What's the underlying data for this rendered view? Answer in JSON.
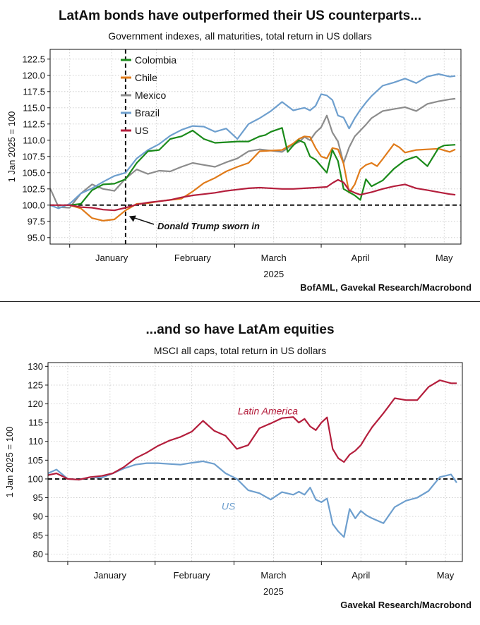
{
  "charts": [
    {
      "title": "LatAm bonds have outperformed their US counterparts...",
      "subtitle": "Government indexes, all maturities, total return in US dollars",
      "source": "BofAML, Gavekal Research/Macrobond",
      "year_label": "2025",
      "annotation": "Donald Trump sworn in"
    },
    {
      "title": "...and so have LatAm equities",
      "subtitle": "MSCI all caps, total return in US dollars",
      "source": "Gavekal Research/Macrobond",
      "year_label": "2025"
    }
  ],
  "chart_data": [
    {
      "type": "line",
      "title": "LatAm bonds have outperformed their US counterparts...",
      "ylabel": "1 Jan 2025 = 100",
      "ylim": [
        94,
        124
      ],
      "yticks": [
        95.0,
        97.5,
        100.0,
        102.5,
        105.0,
        107.5,
        110.0,
        112.5,
        115.0,
        117.5,
        120.0,
        122.5
      ],
      "xlim": [
        -7,
        140
      ],
      "x_unit": "days since 1 Jan 2025",
      "xticks": [
        {
          "label": "January",
          "day": 15
        },
        {
          "label": "February",
          "day": 44
        },
        {
          "label": "March",
          "day": 73
        },
        {
          "label": "April",
          "day": 104
        },
        {
          "label": "May",
          "day": 134
        }
      ],
      "reference_line_y": 100,
      "event_line_day": 20,
      "legend_position": "top-left",
      "series": [
        {
          "name": "Colombia",
          "color": "#1a8a1a",
          "x": [
            0,
            4,
            8,
            12,
            16,
            20,
            24,
            28,
            32,
            36,
            40,
            44,
            48,
            52,
            56,
            60,
            64,
            68,
            70,
            72,
            74,
            76,
            78,
            80,
            82,
            84,
            86,
            88,
            90,
            92,
            94,
            96,
            98,
            100,
            102,
            104,
            106,
            108,
            112,
            116,
            120,
            124,
            128,
            132,
            134,
            138
          ],
          "values": [
            100,
            100.2,
            102.3,
            103.2,
            103.3,
            104,
            106.5,
            108.3,
            108.5,
            110.2,
            110.6,
            111.5,
            110.2,
            109.6,
            109.7,
            109.8,
            109.8,
            110.6,
            110.8,
            111.3,
            111.6,
            111.9,
            108.2,
            109.2,
            110,
            109.6,
            107.5,
            107,
            106,
            105,
            108.5,
            106.8,
            102.5,
            102,
            101.5,
            100.8,
            104,
            102.9,
            103.8,
            105.6,
            106.9,
            107.5,
            106,
            108.8,
            109.2,
            109.3
          ]
        },
        {
          "name": "Chile",
          "color": "#e07b1a",
          "x": [
            0,
            4,
            8,
            12,
            16,
            20,
            24,
            28,
            32,
            36,
            40,
            44,
            48,
            52,
            56,
            60,
            64,
            68,
            72,
            76,
            80,
            82,
            84,
            86,
            88,
            90,
            92,
            94,
            96,
            98,
            100,
            102,
            104,
            106,
            108,
            110,
            112,
            116,
            118,
            120,
            124,
            128,
            132,
            136,
            138
          ],
          "values": [
            100,
            99.5,
            98,
            97.6,
            97.8,
            99.2,
            100.2,
            100.3,
            100.6,
            100.8,
            101,
            102.1,
            103.4,
            104.2,
            105.2,
            105.9,
            106.5,
            108.3,
            108.4,
            108.5,
            109.5,
            110.2,
            110.6,
            110.5,
            108.8,
            107.5,
            107.2,
            108.8,
            108.6,
            106.4,
            101.9,
            103.2,
            105.5,
            106.2,
            106.5,
            106,
            107.1,
            109.4,
            108.9,
            108.1,
            108.5,
            108.6,
            108.7,
            108.2,
            108.6
          ]
        },
        {
          "name": "Mexico",
          "color": "#8c8c8c",
          "x": [
            -7,
            -4,
            0,
            4,
            8,
            12,
            16,
            20,
            24,
            28,
            32,
            36,
            40,
            44,
            48,
            52,
            56,
            60,
            64,
            68,
            72,
            76,
            80,
            82,
            84,
            86,
            88,
            90,
            92,
            94,
            96,
            98,
            100,
            102,
            104,
            106,
            108,
            112,
            116,
            120,
            124,
            128,
            132,
            136,
            138
          ],
          "values": [
            102.6,
            99.7,
            99.6,
            101.8,
            103.2,
            102.5,
            102.2,
            104.1,
            105.5,
            104.8,
            105.3,
            105.2,
            105.9,
            106.5,
            106.2,
            105.9,
            106.6,
            107.2,
            108.3,
            108.6,
            108.4,
            108.2,
            109.4,
            109.7,
            110.5,
            110,
            111.2,
            112,
            113.8,
            111.2,
            109.8,
            106.5,
            108.9,
            110.6,
            111.5,
            112.4,
            113.4,
            114.5,
            114.8,
            115.1,
            114.5,
            115.6,
            116,
            116.3,
            116.4
          ]
        },
        {
          "name": "Brazil",
          "color": "#6e9fce",
          "x": [
            -7,
            -4,
            0,
            4,
            8,
            12,
            16,
            20,
            24,
            28,
            32,
            36,
            40,
            44,
            48,
            52,
            56,
            60,
            64,
            68,
            72,
            76,
            80,
            82,
            84,
            86,
            88,
            90,
            92,
            94,
            96,
            98,
            100,
            102,
            104,
            106,
            108,
            112,
            116,
            120,
            124,
            128,
            132,
            136,
            138
          ],
          "values": [
            100,
            99.5,
            100.2,
            101.8,
            102.6,
            103.6,
            104.5,
            105,
            107.2,
            108.5,
            109.4,
            110.7,
            111.6,
            112.2,
            112.1,
            111.3,
            111.8,
            110.2,
            112.5,
            113.4,
            114.5,
            115.9,
            114.6,
            114.8,
            115,
            114.6,
            115.3,
            117.1,
            116.9,
            116.2,
            113.8,
            113.5,
            111.8,
            113.4,
            114.7,
            115.8,
            116.8,
            118.4,
            118.9,
            119.5,
            118.8,
            119.8,
            120.2,
            119.8,
            119.9
          ]
        },
        {
          "name": "US",
          "color": "#b41e3c",
          "x": [
            -7,
            0,
            4,
            8,
            12,
            16,
            20,
            24,
            28,
            32,
            36,
            40,
            44,
            48,
            52,
            56,
            60,
            64,
            68,
            72,
            76,
            80,
            84,
            88,
            92,
            94,
            96,
            98,
            100,
            102,
            104,
            106,
            108,
            112,
            116,
            120,
            124,
            128,
            132,
            136,
            138
          ],
          "values": [
            100,
            100,
            99.7,
            99.6,
            99.3,
            99.2,
            99.6,
            100.1,
            100.4,
            100.6,
            100.8,
            101.2,
            101.5,
            101.7,
            101.9,
            102.2,
            102.4,
            102.6,
            102.7,
            102.6,
            102.5,
            102.5,
            102.6,
            102.7,
            102.8,
            103.4,
            103.9,
            103.5,
            102.3,
            101.9,
            101.6,
            101.8,
            102,
            102.5,
            102.9,
            103.2,
            102.6,
            102.3,
            102,
            101.7,
            101.6
          ]
        }
      ]
    },
    {
      "type": "line",
      "title": "...and so have LatAm equities",
      "ylabel": "1 Jan 2025 = 100",
      "ylim": [
        78,
        131
      ],
      "yticks": [
        80,
        85,
        90,
        95,
        100,
        105,
        110,
        115,
        120,
        125,
        130
      ],
      "xlim": [
        -7,
        140
      ],
      "x_unit": "days since 1 Jan 2025",
      "xticks": [
        {
          "label": "January",
          "day": 15
        },
        {
          "label": "February",
          "day": 44
        },
        {
          "label": "March",
          "day": 73
        },
        {
          "label": "April",
          "day": 104
        },
        {
          "label": "May",
          "day": 134
        }
      ],
      "reference_line_y": 100,
      "series": [
        {
          "name": "Latin America",
          "color": "#b41e3c",
          "label_position": "above-line-mid",
          "x": [
            -7,
            -4,
            0,
            4,
            8,
            12,
            16,
            20,
            24,
            28,
            32,
            36,
            40,
            44,
            48,
            52,
            56,
            60,
            64,
            68,
            72,
            76,
            80,
            82,
            84,
            86,
            88,
            90,
            92,
            94,
            96,
            98,
            100,
            102,
            104,
            106,
            108,
            112,
            116,
            120,
            124,
            128,
            132,
            136,
            138
          ],
          "values": [
            101,
            101.5,
            100,
            99.8,
            100.5,
            100.8,
            101.5,
            103.2,
            105.5,
            107,
            108.8,
            110.2,
            111.2,
            112.6,
            115.5,
            112.8,
            111.5,
            108,
            109,
            113.5,
            114.8,
            116.2,
            116.5,
            115,
            116,
            114,
            113,
            115,
            116.4,
            108,
            105.5,
            104.5,
            106.5,
            107.5,
            109,
            111.5,
            113.8,
            117.5,
            121.5,
            121,
            121,
            124.5,
            126.3,
            125.5,
            125.5
          ]
        },
        {
          "name": "US",
          "color": "#6e9fce",
          "label_position": "below-line-mid",
          "x": [
            -7,
            -4,
            0,
            4,
            8,
            12,
            16,
            20,
            24,
            28,
            32,
            36,
            40,
            44,
            48,
            52,
            56,
            60,
            64,
            68,
            72,
            76,
            80,
            82,
            84,
            86,
            88,
            90,
            92,
            94,
            96,
            98,
            100,
            102,
            104,
            106,
            108,
            112,
            116,
            120,
            124,
            128,
            132,
            136,
            138
          ],
          "values": [
            101.5,
            102.5,
            100,
            99.8,
            100.5,
            100.3,
            101.5,
            102.8,
            103.8,
            104.2,
            104.2,
            104,
            103.8,
            104.3,
            104.7,
            104,
            101.5,
            100,
            97,
            96.2,
            94.5,
            96.5,
            95.8,
            96.6,
            95.8,
            97.7,
            94.5,
            93.8,
            94.8,
            88,
            86,
            84.5,
            92,
            89.5,
            91.5,
            90.3,
            89.5,
            88.2,
            92.5,
            94.2,
            95,
            96.8,
            100.5,
            101.2,
            99
          ]
        }
      ]
    }
  ]
}
